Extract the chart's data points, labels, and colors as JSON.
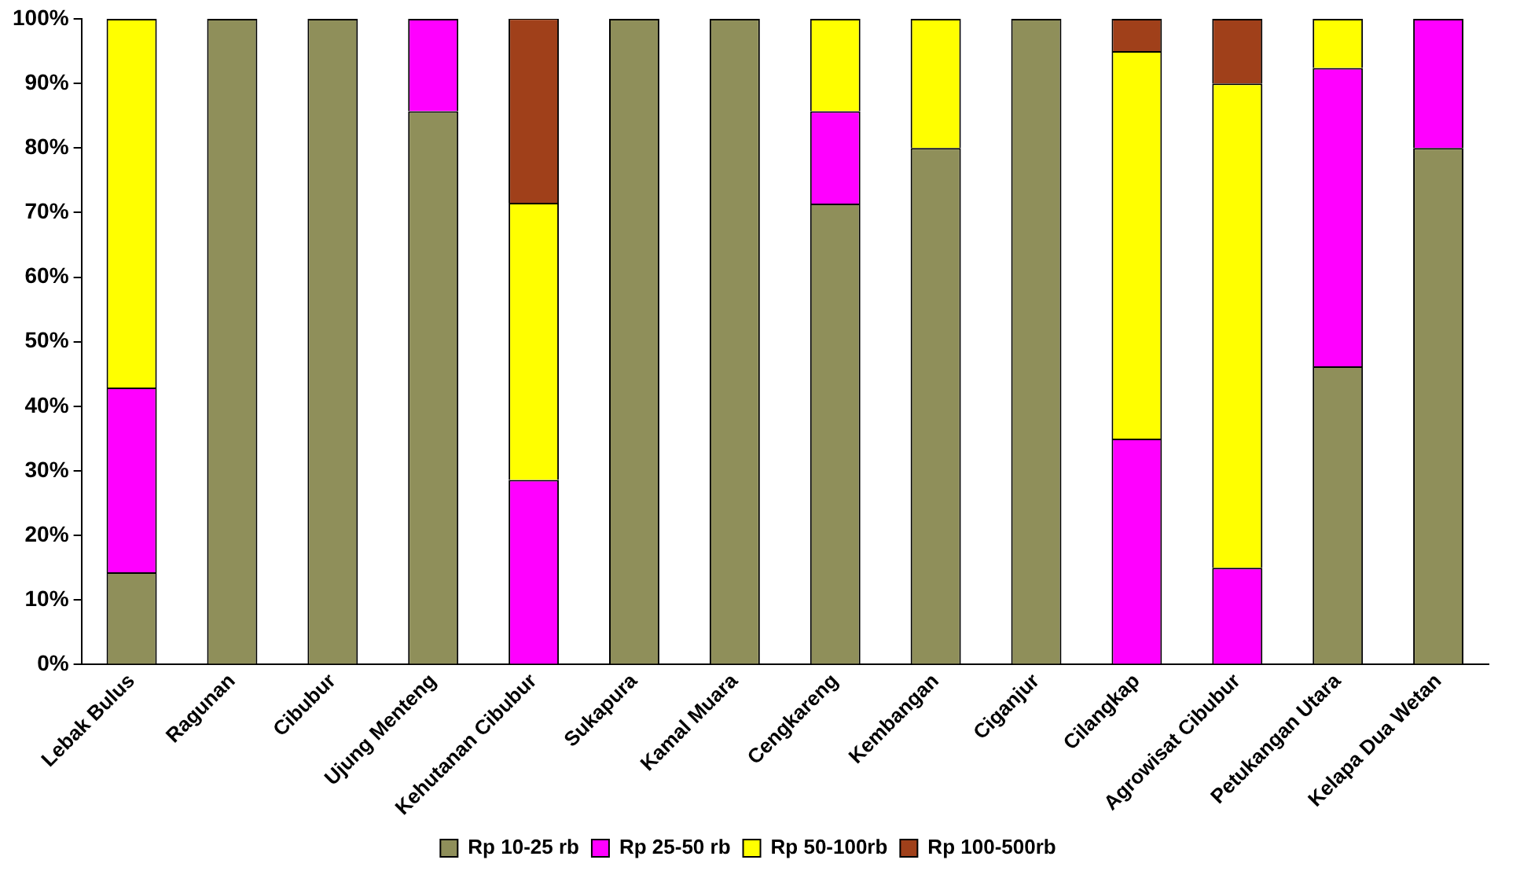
{
  "chart_data": {
    "type": "bar",
    "stacked": true,
    "categories": [
      "Lebak Bulus",
      "Ragunan",
      "Cibubur",
      "Ujung Menteng",
      "Kehutanan Cibubur",
      "Sukapura",
      "Kamal Muara",
      "Cengkareng",
      "Kembangan",
      "Ciganjur",
      "Cilangkap",
      "Agrowisat Cibubur",
      "Petukangan Utara",
      "Kelapa Dua Wetan"
    ],
    "series": [
      {
        "name": "Rp 10-25 rb",
        "color": "#8f8f5a",
        "values": [
          14.3,
          100,
          100,
          85.7,
          0,
          100,
          100,
          71.4,
          80,
          100,
          0,
          0,
          46.2,
          80
        ]
      },
      {
        "name": "Rp 25-50 rb",
        "color": "#ff00ff",
        "values": [
          28.6,
          0,
          0,
          14.3,
          28.6,
          0,
          0,
          14.3,
          0,
          0,
          35,
          15,
          46.2,
          20
        ]
      },
      {
        "name": "Rp 50-100rb",
        "color": "#ffff00",
        "values": [
          57.1,
          0,
          0,
          0,
          42.9,
          0,
          0,
          14.3,
          20,
          0,
          60,
          75,
          7.6,
          0
        ]
      },
      {
        "name": "Rp 100-500rb",
        "color": "#a0401a",
        "values": [
          0,
          0,
          0,
          0,
          28.6,
          0,
          0,
          0,
          0,
          0,
          5,
          10,
          0,
          0
        ]
      }
    ],
    "ylim": [
      0,
      100
    ],
    "yticks": [
      {
        "value": 0,
        "label": "0%"
      },
      {
        "value": 10,
        "label": "10%"
      },
      {
        "value": 20,
        "label": "20%"
      },
      {
        "value": 30,
        "label": "30%"
      },
      {
        "value": 40,
        "label": "40%"
      },
      {
        "value": 50,
        "label": "50%"
      },
      {
        "value": 60,
        "label": "60%"
      },
      {
        "value": 70,
        "label": "70%"
      },
      {
        "value": 80,
        "label": "80%"
      },
      {
        "value": 90,
        "label": "90%"
      },
      {
        "value": 100,
        "label": "100%"
      }
    ],
    "grid": false,
    "legend": "bottom"
  }
}
